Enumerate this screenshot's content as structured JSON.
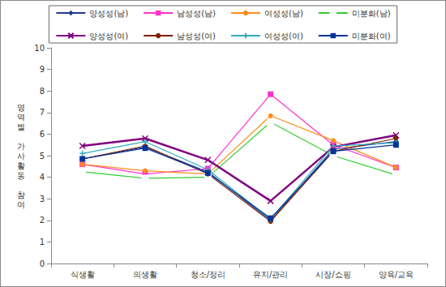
{
  "chart_data": {
    "type": "line",
    "y_label": "영역별 가사활동 참여",
    "categories": [
      "식생활",
      "의생활",
      "청소/정리",
      "유지/관리",
      "시장/쇼핑",
      "양육/교육"
    ],
    "ylim": [
      0,
      10
    ],
    "yticks": [
      0,
      1,
      2,
      3,
      4,
      5,
      6,
      7,
      8,
      9,
      10
    ],
    "grid": false,
    "legend": "top",
    "series": [
      {
        "name": "양성성(남)",
        "color": "#1f3a93",
        "marker": "diamond",
        "values": [
          4.85,
          5.4,
          4.25,
          2.0,
          5.3,
          5.65
        ]
      },
      {
        "name": "남성성(남)",
        "color": "#ff33cc",
        "marker": "square",
        "values": [
          4.6,
          4.15,
          4.4,
          7.85,
          5.5,
          4.45
        ]
      },
      {
        "name": "여성성(남)",
        "color": "#ff8c1a",
        "marker": "circle",
        "values": [
          4.6,
          4.3,
          4.15,
          6.85,
          5.7,
          4.45
        ]
      },
      {
        "name": "미분화(남)",
        "color": "#33cc33",
        "marker": "hollow_square",
        "values": [
          4.25,
          3.95,
          4.0,
          6.55,
          5.0,
          4.1
        ]
      },
      {
        "name": "양성성(여)",
        "color": "#800080",
        "marker": "x",
        "values": [
          5.45,
          5.8,
          4.8,
          2.9,
          5.4,
          5.95
        ]
      },
      {
        "name": "남성성(여)",
        "color": "#7f1f00",
        "marker": "circle",
        "values": [
          4.85,
          5.45,
          4.15,
          1.95,
          5.2,
          5.8
        ]
      },
      {
        "name": "여성성(여)",
        "color": "#33aabb",
        "marker": "plus",
        "values": [
          5.1,
          5.65,
          4.35,
          2.05,
          5.45,
          5.6
        ]
      },
      {
        "name": "미분화(여)",
        "color": "#003399",
        "marker": "square",
        "values": [
          4.85,
          5.35,
          4.2,
          2.1,
          5.2,
          5.5
        ]
      }
    ]
  }
}
